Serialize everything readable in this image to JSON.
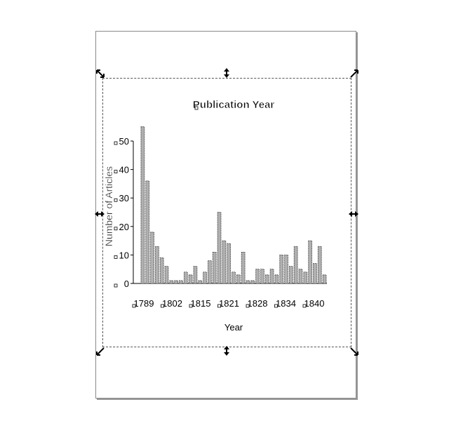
{
  "chart_data": {
    "type": "bar",
    "title": "Publication Year",
    "xlabel": "Year",
    "ylabel": "Number of Articles",
    "ylim": [
      0,
      50
    ],
    "yticks": [
      0,
      10,
      20,
      30,
      40,
      50
    ],
    "tick_labels_x": [
      "1789",
      "1802",
      "1815",
      "1821",
      "1828",
      "1834",
      "1840"
    ],
    "values": [
      55,
      36,
      18,
      13,
      9,
      6,
      1,
      1,
      1,
      4,
      3,
      6,
      1,
      4,
      8,
      11,
      25,
      15,
      14,
      4,
      3,
      11,
      1,
      1,
      5,
      5,
      3,
      5,
      3,
      10,
      10,
      6,
      13,
      5,
      4,
      15,
      7,
      13,
      3
    ],
    "bar_color": "#b0b0b0",
    "grid": false,
    "legend": "none"
  }
}
